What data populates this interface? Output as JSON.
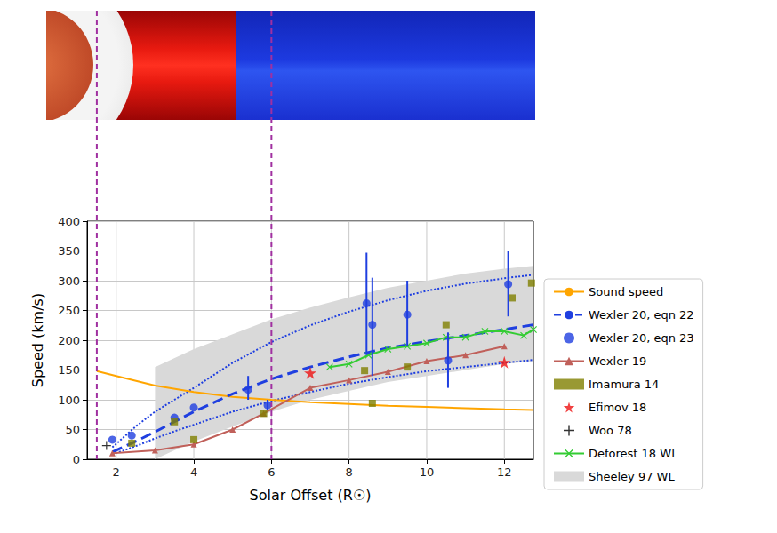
{
  "chart_data": {
    "type": "line",
    "xlabel": "Solar Offset (R☉)",
    "ylabel": "Speed (km/s)",
    "xlim": [
      1.25,
      12.75
    ],
    "xticks": [
      2,
      4,
      6,
      8,
      10,
      12
    ],
    "ylim": [
      0,
      400
    ],
    "yticks": [
      0,
      50,
      100,
      150,
      200,
      250,
      300,
      350,
      400
    ],
    "grid": true,
    "legend": "right",
    "vertical_lines": [
      1.5,
      6
    ],
    "series": [
      {
        "name": "Sound speed",
        "type": "line",
        "color": "#ffa500",
        "marker": "none",
        "line_style": "solid",
        "x": [
          1.5,
          2,
          3,
          4,
          5,
          6,
          7,
          8,
          9,
          10,
          11,
          12,
          12.75
        ],
        "values": [
          148,
          140,
          124,
          113,
          105,
          100,
          96,
          93,
          90,
          88,
          86,
          84,
          83
        ]
      },
      {
        "name": "Wexler 20, eqn 22",
        "type": "line",
        "color": "#1f3fe0",
        "marker": "none",
        "line_style": "dashed",
        "x": [
          1.9,
          2.5,
          3,
          3.5,
          4,
          5,
          6,
          7,
          8,
          9,
          10,
          11,
          12,
          12.75
        ],
        "values": [
          12,
          30,
          46,
          63,
          80,
          110,
          135,
          155,
          172,
          187,
          198,
          208,
          218,
          226
        ],
        "lower": [
          8,
          22,
          35,
          47,
          58,
          80,
          98,
          113,
          127,
          138,
          148,
          155,
          162,
          167
        ],
        "upper": [
          20,
          55,
          80,
          100,
          120,
          162,
          197,
          225,
          248,
          267,
          283,
          295,
          304,
          310
        ]
      },
      {
        "name": "Wexler 20, eqn 23",
        "type": "scatter",
        "color": "#1f3fe0",
        "marker": "circle",
        "x": [
          1.9,
          2.4,
          3.5,
          4,
          5.4,
          5.9,
          8.45,
          8.6,
          9.5,
          10.55,
          12.1
        ],
        "values": [
          33,
          40,
          70,
          87,
          117,
          91,
          262,
          226,
          243,
          166,
          294
        ],
        "error_low": [
          null,
          null,
          null,
          null,
          100,
          83,
          175,
          140,
          190,
          120,
          240
        ],
        "error_high": [
          null,
          null,
          null,
          null,
          140,
          100,
          347,
          305,
          300,
          213,
          350
        ]
      },
      {
        "name": "Wexler 19",
        "type": "line",
        "color": "#c0605a",
        "marker": "triangle",
        "line_style": "solid",
        "x": [
          1.9,
          3,
          4,
          5,
          5.8,
          7,
          8,
          9,
          10,
          11,
          12
        ],
        "values": [
          10,
          15,
          25,
          50,
          77,
          120,
          133,
          147,
          165,
          175,
          190
        ]
      },
      {
        "name": "Imamura 14",
        "type": "scatter",
        "color": "#808000",
        "marker": "square",
        "x": [
          2.4,
          3.5,
          4,
          5.8,
          8.4,
          8.6,
          9.5,
          10.5,
          12.2,
          12.7
        ],
        "values": [
          27,
          63,
          33,
          77,
          149,
          94,
          155,
          226,
          271,
          296
        ]
      },
      {
        "name": "Efimov 18",
        "type": "scatter",
        "color": "#ee1111",
        "marker": "star",
        "x": [
          7,
          12
        ],
        "values": [
          145,
          163
        ]
      },
      {
        "name": "Woo 78",
        "type": "scatter",
        "color": "#000000",
        "marker": "plus",
        "x": [
          1.75
        ],
        "values": [
          23
        ]
      },
      {
        "name": "Deforest 18 WL",
        "type": "line",
        "color": "#33cc33",
        "marker": "x",
        "line_style": "solid",
        "x": [
          7.5,
          8,
          8.5,
          9,
          9.5,
          10,
          10.5,
          11,
          11.5,
          12,
          12.5,
          12.75
        ],
        "values": [
          155,
          160,
          175,
          185,
          190,
          195,
          205,
          205,
          215,
          215,
          208,
          218
        ]
      },
      {
        "name": "Sheeley 97 WL",
        "type": "area",
        "color": "#d9d9d9",
        "x": [
          3,
          4,
          5,
          6,
          7,
          8,
          9,
          10,
          11,
          12,
          12.75
        ],
        "lower": [
          0,
          30,
          55,
          80,
          100,
          115,
          130,
          140,
          150,
          160,
          165
        ],
        "upper": [
          155,
          185,
          210,
          235,
          255,
          272,
          288,
          300,
          312,
          320,
          325
        ]
      }
    ]
  }
}
